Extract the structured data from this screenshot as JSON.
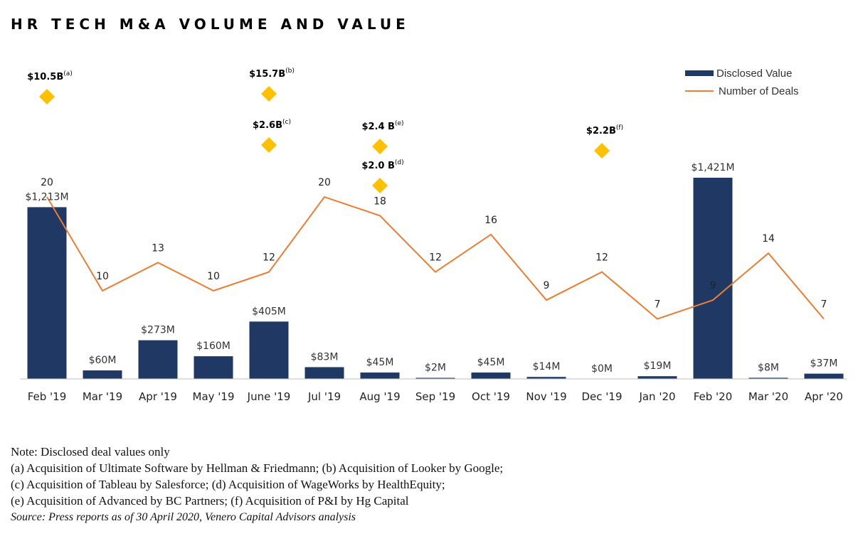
{
  "title": "HR TECH M&A VOLUME AND VALUE",
  "legend": {
    "value_label": "Disclosed Value",
    "deals_label": "Number of Deals"
  },
  "colors": {
    "bar": "#1F3864",
    "line": "#ED7D31",
    "diamond": "#FFC000",
    "axis": "#BFBFBF"
  },
  "chart_data": {
    "type": "bar",
    "categories": [
      "Feb '19",
      "Mar '19",
      "Apr '19",
      "May '19",
      "June '19",
      "Jul '19",
      "Aug '19",
      "Sep '19",
      "Oct '19",
      "Nov '19",
      "Dec '19",
      "Jan '20",
      "Feb '20",
      "Mar '20",
      "Apr '20"
    ],
    "series": [
      {
        "name": "Disclosed Value",
        "type": "bar",
        "values": [
          1213,
          60,
          273,
          160,
          405,
          83,
          45,
          2,
          45,
          14,
          0,
          19,
          1421,
          8,
          37
        ],
        "labels": [
          "$1,213M",
          "$60M",
          "$273M",
          "$160M",
          "$405M",
          "$83M",
          "$45M",
          "$2M",
          "$45M",
          "$14M",
          "$0M",
          "$19M",
          "$1,421M",
          "$8M",
          "$37M"
        ]
      },
      {
        "name": "Number of Deals",
        "type": "line",
        "values": [
          20,
          10,
          13,
          10,
          12,
          20,
          18,
          12,
          16,
          9,
          12,
          7,
          9,
          14,
          7
        ]
      }
    ],
    "annotations": [
      {
        "category": "Feb '19",
        "label": "$10.5B",
        "note": "(a)",
        "value_b": 10.5
      },
      {
        "category": "June '19",
        "label": "$15.7B",
        "note": "(b)",
        "value_b": 15.7
      },
      {
        "category": "June '19",
        "label": "$2.6B",
        "note": "(c)",
        "value_b": 2.6
      },
      {
        "category": "Aug '19",
        "label": "$2.4 B",
        "note": "(e)",
        "value_b": 2.4
      },
      {
        "category": "Aug '19",
        "label": "$2.0 B",
        "note": "(d)",
        "value_b": 2.0
      },
      {
        "category": "Dec '19",
        "label": "$2.2B",
        "note": "(f)",
        "value_b": 2.2
      }
    ],
    "legend_position": "top-right"
  },
  "notes": {
    "line1": "Note: Disclosed deal values only",
    "line2": "(a) Acquisition of Ultimate Software by Hellman & Friedmann; (b) Acquisition of Looker by Google;",
    "line3": "(c) Acquisition of Tableau by Salesforce; (d) Acquisition of WageWorks by HealthEquity;",
    "line4": "(e) Acquisition of Advanced by BC Partners; (f) Acquisition of P&I by Hg Capital",
    "source": "Source: Press reports as of 30 April 2020,  Venero Capital Advisors analysis"
  }
}
